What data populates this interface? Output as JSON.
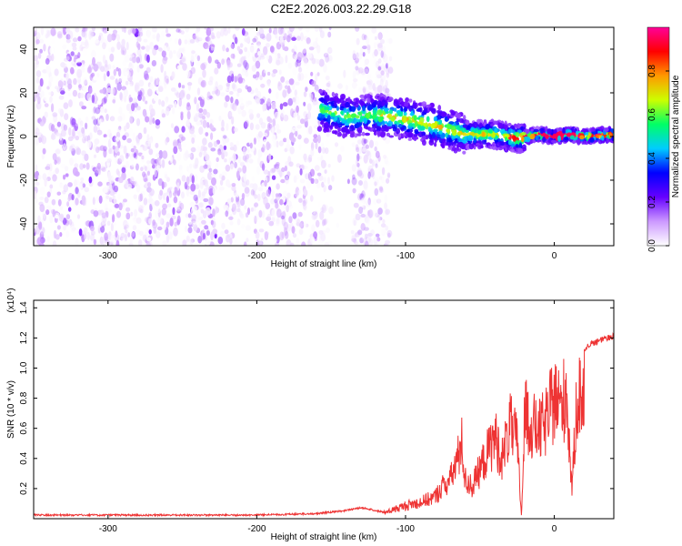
{
  "title": "C2E2.2026.003.22.29.G18",
  "chart_data": [
    {
      "type": "heatmap",
      "xlabel": "Height of straight line (km)",
      "ylabel": "Frequency (Hz)",
      "xlim": [
        -350,
        40
      ],
      "ylim": [
        -50,
        50
      ],
      "xticks": [
        -300,
        -200,
        -100,
        0
      ],
      "yticks": [
        -40,
        -20,
        0,
        20,
        40
      ],
      "colorbar": {
        "label": "Normalized spectral amplitude",
        "range": [
          0,
          1
        ],
        "ticks": [
          0.0,
          0.2,
          0.4,
          0.6,
          0.8
        ],
        "colormap": [
          "#ffffff",
          "#cc99ff",
          "#6600ff",
          "#0000ff",
          "#00ccff",
          "#00ff66",
          "#ccff00",
          "#ff9900",
          "#ff0000",
          "#ff0099"
        ]
      },
      "ridge": {
        "description_points_x": [
          -155,
          -140,
          -120,
          -100,
          -80,
          -60,
          -40,
          -25,
          -10,
          0,
          10,
          20,
          40
        ],
        "description_points_y": [
          12,
          9,
          10,
          8,
          5,
          1,
          1,
          -1,
          1,
          0,
          1,
          0,
          1
        ]
      },
      "noise_region_xmax": -110
    },
    {
      "type": "line",
      "xlabel": "Height of straight line (km)",
      "ylabel": "SNR (10 * v/v)",
      "y_multiplier": "(x10⁴)",
      "xlim": [
        -350,
        40
      ],
      "ylim": [
        0,
        1.45
      ],
      "xticks": [
        -300,
        -200,
        -100,
        0
      ],
      "yticks": [
        0.2,
        0.4,
        0.6,
        0.8,
        1.0,
        1.2,
        1.4
      ],
      "color": "#ee3333",
      "series": [
        {
          "x": [
            -350,
            -300,
            -250,
            -200,
            -160,
            -140,
            -130,
            -115,
            -100,
            -90,
            -80,
            -75,
            -70,
            -65,
            -62,
            -60,
            -55,
            -50,
            -45,
            -40,
            -35,
            -30,
            -25,
            -22,
            -20,
            -15,
            -10,
            -5,
            0,
            5,
            8,
            12,
            15,
            20,
            25,
            30,
            35,
            40
          ],
          "y": [
            0.03,
            0.03,
            0.03,
            0.03,
            0.04,
            0.06,
            0.08,
            0.05,
            0.12,
            0.15,
            0.2,
            0.3,
            0.35,
            0.55,
            0.7,
            0.35,
            0.3,
            0.45,
            0.6,
            0.75,
            0.55,
            0.85,
            0.7,
            0.01,
            0.95,
            0.85,
            0.8,
            0.9,
            1.1,
            1.0,
            1.2,
            0.25,
            1.1,
            1.15,
            1.18,
            1.2,
            1.22,
            1.23
          ]
        }
      ]
    }
  ]
}
